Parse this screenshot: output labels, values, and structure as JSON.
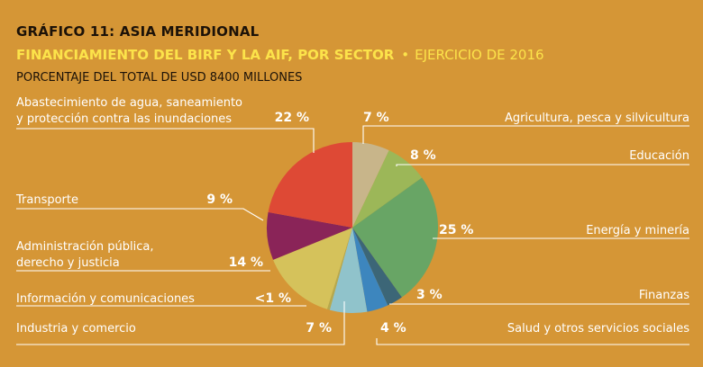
{
  "header": {
    "chart_number": "GRÁFICO 11:",
    "region": "ASIA MERIDIONAL",
    "subtitle_bold": "FINANCIAMIENTO DEL BIRF Y LA AIF, POR SECTOR",
    "separator": "•",
    "subtitle_year": "EJERCICIO DE 2016",
    "caption": "PORCENTAJE DEL TOTAL DE USD 8400 MILLONES"
  },
  "colors": {
    "background": "#D59636",
    "subtitle": "#FCE34A",
    "lines": "#ffffff"
  },
  "chart_data": {
    "type": "pie",
    "title": "GRÁFICO 11: ASIA MERIDIONAL",
    "subtitle": "FINANCIAMIENTO DEL BIRF Y LA AIF, POR SECTOR • EJERCICIO DE 2016",
    "unit": "PORCENTAJE DEL TOTAL DE USD 8400 MILLONES",
    "slices": [
      {
        "name": "Agricultura, pesca y silvicultura",
        "label": "7 %",
        "value": 7,
        "color": "#C8B58A"
      },
      {
        "name": "Educación",
        "label": "8 %",
        "value": 8,
        "color": "#9CB758"
      },
      {
        "name": "Energía y minería",
        "label": "25 %",
        "value": 25,
        "color": "#68A565"
      },
      {
        "name": "Finanzas",
        "label": "3 %",
        "value": 3,
        "color": "#3C6677"
      },
      {
        "name": "Salud y otros servicios sociales",
        "label": "4 %",
        "value": 4,
        "color": "#3D86BE"
      },
      {
        "name": "Industria y comercio",
        "label": "7 %",
        "value": 7,
        "color": "#90C3CB"
      },
      {
        "name": "Información y comunicaciones",
        "label": "<1 %",
        "value": 0.5,
        "color": "#B5A94F"
      },
      {
        "name": "Administración pública, derecho y justicia",
        "label": "14 %",
        "value": 14,
        "color": "#D5C25B"
      },
      {
        "name": "Transporte",
        "label": "9 %",
        "value": 9,
        "color": "#8A2458"
      },
      {
        "name": "Abastecimiento de agua, saneamiento y protección contra las inundaciones",
        "label": "22 %",
        "value": 22,
        "color": "#DE4935"
      }
    ]
  }
}
